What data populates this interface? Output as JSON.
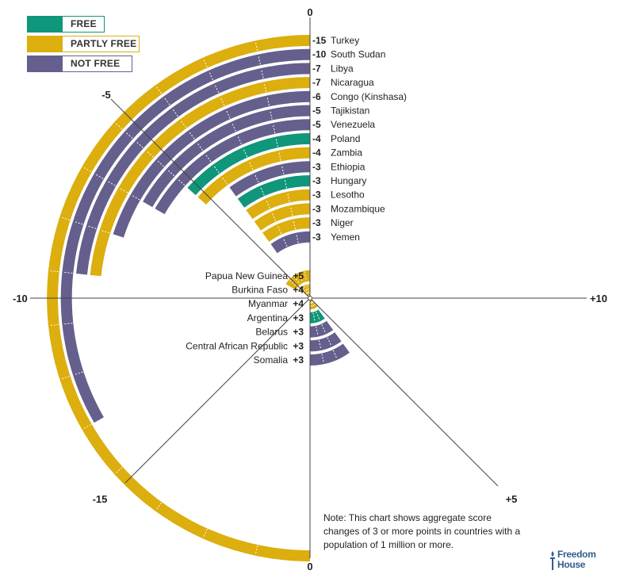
{
  "legend": {
    "free": "FREE",
    "partly_free": "PARTLY FREE",
    "not_free": "NOT FREE"
  },
  "colors": {
    "free": "#10967a",
    "partly_free": "#dcae0e",
    "not_free": "#645f8c",
    "brand": "#2f5d8a"
  },
  "axis_labels": {
    "top": "0",
    "bottom": "0",
    "left": "-10",
    "right": "+10",
    "upper_left": "-5",
    "lower_left": "-15",
    "lower_right": "+5"
  },
  "note": "Note: This chart shows aggregate score changes of 3 or more points in countries with a population of 1 million or more.",
  "logo": {
    "line1": "Freedom",
    "line2": "House",
    "icon": "torch-icon"
  },
  "chart_data": {
    "type": "radial-bar",
    "axis_scale": "angle proportional to score change; -15 to +15 points per half-circle",
    "declines": [
      {
        "country": "Turkey",
        "change": -15,
        "label": "-15",
        "status": "partly_free"
      },
      {
        "country": "South Sudan",
        "change": -10,
        "label": "-10",
        "status": "not_free"
      },
      {
        "country": "Libya",
        "change": -7,
        "label": "-7",
        "status": "not_free"
      },
      {
        "country": "Nicaragua",
        "change": -7,
        "label": "-7",
        "status": "partly_free"
      },
      {
        "country": "Congo (Kinshasa)",
        "change": -6,
        "label": "-6",
        "status": "not_free"
      },
      {
        "country": "Tajikistan",
        "change": -5,
        "label": "-5",
        "status": "not_free"
      },
      {
        "country": "Venezuela",
        "change": -5,
        "label": "-5",
        "status": "not_free"
      },
      {
        "country": "Poland",
        "change": -4,
        "label": "-4",
        "status": "free"
      },
      {
        "country": "Zambia",
        "change": -4,
        "label": "-4",
        "status": "partly_free"
      },
      {
        "country": "Ethiopia",
        "change": -3,
        "label": "-3",
        "status": "not_free"
      },
      {
        "country": "Hungary",
        "change": -3,
        "label": "-3",
        "status": "free"
      },
      {
        "country": "Lesotho",
        "change": -3,
        "label": "-3",
        "status": "partly_free"
      },
      {
        "country": "Mozambique",
        "change": -3,
        "label": "-3",
        "status": "partly_free"
      },
      {
        "country": "Niger",
        "change": -3,
        "label": "-3",
        "status": "partly_free"
      },
      {
        "country": "Yemen",
        "change": -3,
        "label": "-3",
        "status": "not_free"
      }
    ],
    "gains": [
      {
        "country": "Somalia",
        "change": 3,
        "label": "+3",
        "status": "not_free"
      },
      {
        "country": "Central African Republic",
        "change": 3,
        "label": "+3",
        "status": "not_free"
      },
      {
        "country": "Belarus",
        "change": 3,
        "label": "+3",
        "status": "not_free"
      },
      {
        "country": "Argentina",
        "change": 3,
        "label": "+3",
        "status": "free"
      },
      {
        "country": "Myanmar",
        "change": 4,
        "label": "+4",
        "status": "partly_free"
      },
      {
        "country": "Burkina Faso",
        "change": 4,
        "label": "+4",
        "status": "partly_free"
      },
      {
        "country": "Papua New Guinea",
        "change": 5,
        "label": "+5",
        "status": "partly_free"
      }
    ]
  }
}
